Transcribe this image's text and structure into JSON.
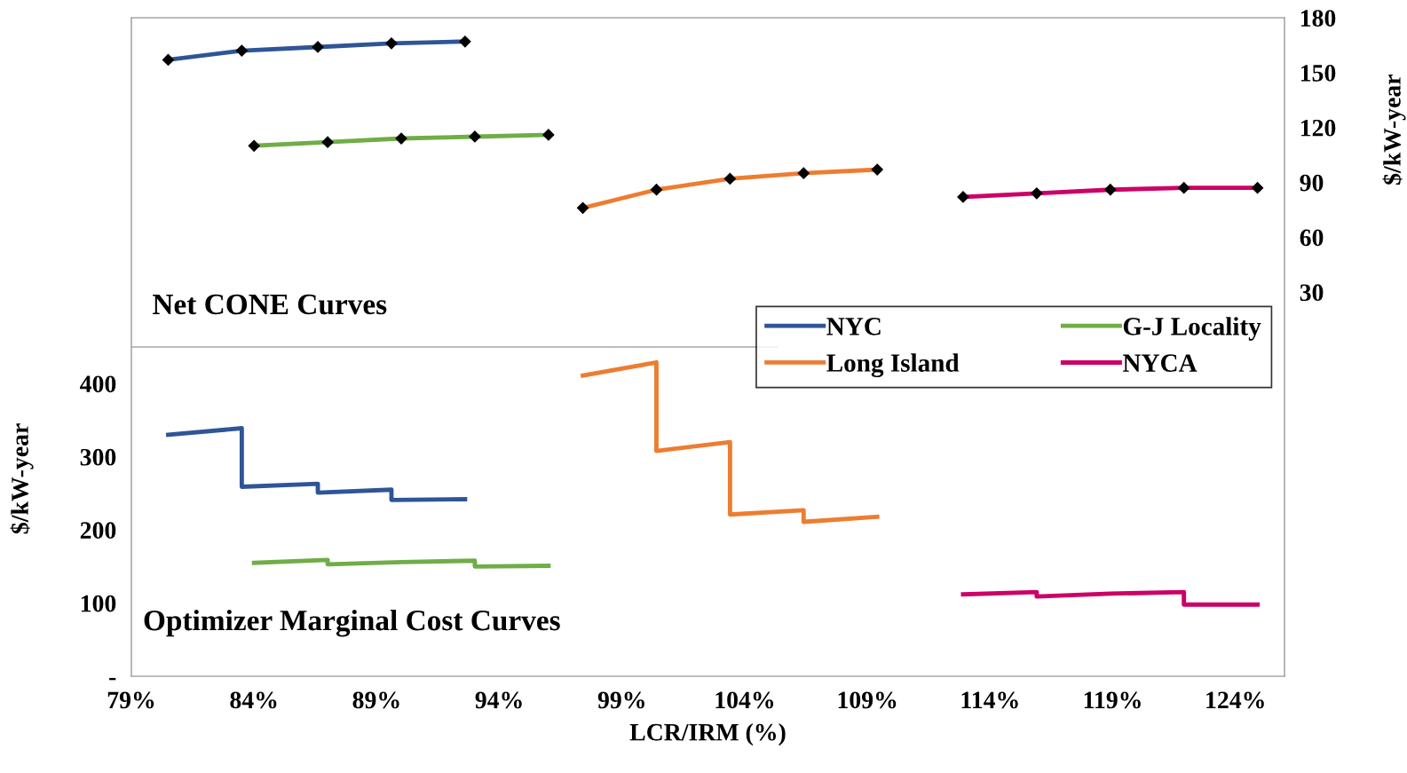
{
  "chart_data": {
    "type": "line",
    "xlabel": "LCR/IRM (%)",
    "ylabel": "$/kW-year",
    "y2label": "$/kW-year",
    "xlim": [
      79,
      126
    ],
    "xticks": [
      {
        "value": 79,
        "label": "79%"
      },
      {
        "value": 84,
        "label": "84%"
      },
      {
        "value": 89,
        "label": "89%"
      },
      {
        "value": 94,
        "label": "94%"
      },
      {
        "value": 99,
        "label": "99%"
      },
      {
        "value": 104,
        "label": "104%"
      },
      {
        "value": 109,
        "label": "109%"
      },
      {
        "value": 114,
        "label": "114%"
      },
      {
        "value": 119,
        "label": "119%"
      },
      {
        "value": 124,
        "label": "124%"
      }
    ],
    "ylim": [
      0,
      900
    ],
    "yticks": [
      {
        "value": 0,
        "label": "-"
      },
      100,
      200,
      300,
      400
    ],
    "y2lim": [
      -180,
      180
    ],
    "y2ticks": [
      30,
      60,
      90,
      120,
      150,
      180
    ],
    "series": [
      {
        "name": "NYC",
        "color": "#2f5597",
        "axis": "y2",
        "marker": "diamond",
        "x": [
          80.5,
          83.5,
          86.6,
          89.6,
          92.6
        ],
        "values": [
          157,
          162,
          164,
          166,
          167
        ]
      },
      {
        "name": "Long Island",
        "color": "#ed7d31",
        "axis": "y2",
        "marker": "diamond",
        "x": [
          97.4,
          100.4,
          103.4,
          106.4,
          109.4
        ],
        "values": [
          76,
          86,
          92,
          95,
          97
        ]
      },
      {
        "name": "G-J Locality",
        "color": "#70ad47",
        "axis": "y2",
        "marker": "diamond",
        "x": [
          84,
          87,
          90,
          93,
          96
        ],
        "values": [
          110,
          112,
          114,
          115,
          116
        ]
      },
      {
        "name": "NYCA",
        "color": "#cc0066",
        "axis": "y2",
        "marker": "diamond",
        "x": [
          112.9,
          115.9,
          118.9,
          121.9,
          124.9
        ],
        "values": [
          82,
          84,
          86,
          87,
          87
        ]
      },
      {
        "color": "#2f5597",
        "x": [
          80.5,
          83.5,
          83.5,
          86.6,
          86.6,
          89.6,
          89.6,
          92.6
        ],
        "values": [
          330,
          339,
          259,
          263,
          251,
          255,
          241,
          242
        ]
      },
      {
        "color": "#70ad47",
        "x": [
          84,
          87,
          87,
          90,
          93,
          93,
          96
        ],
        "values": [
          155,
          159,
          153,
          156,
          158,
          150,
          151
        ]
      },
      {
        "color": "#ed7d31",
        "x": [
          97.4,
          100.4,
          100.4,
          103.4,
          103.4,
          106.4,
          106.4,
          109.4
        ],
        "values": [
          411,
          429,
          308,
          320,
          221,
          227,
          211,
          218
        ]
      },
      {
        "color": "#cc0066",
        "x": [
          112.9,
          115.9,
          115.9,
          118.9,
          121.9,
          121.9,
          124.9
        ],
        "values": [
          112,
          115,
          109,
          113,
          115,
          98,
          98
        ]
      }
    ],
    "ref_lines": [
      {
        "axis": "y2",
        "value": 0,
        "color": "#a6a6a6"
      }
    ],
    "annotations": [
      "Net CONE Curves",
      "Optimizer Marginal Cost Curves"
    ],
    "legend": "center right",
    "grid": false
  }
}
